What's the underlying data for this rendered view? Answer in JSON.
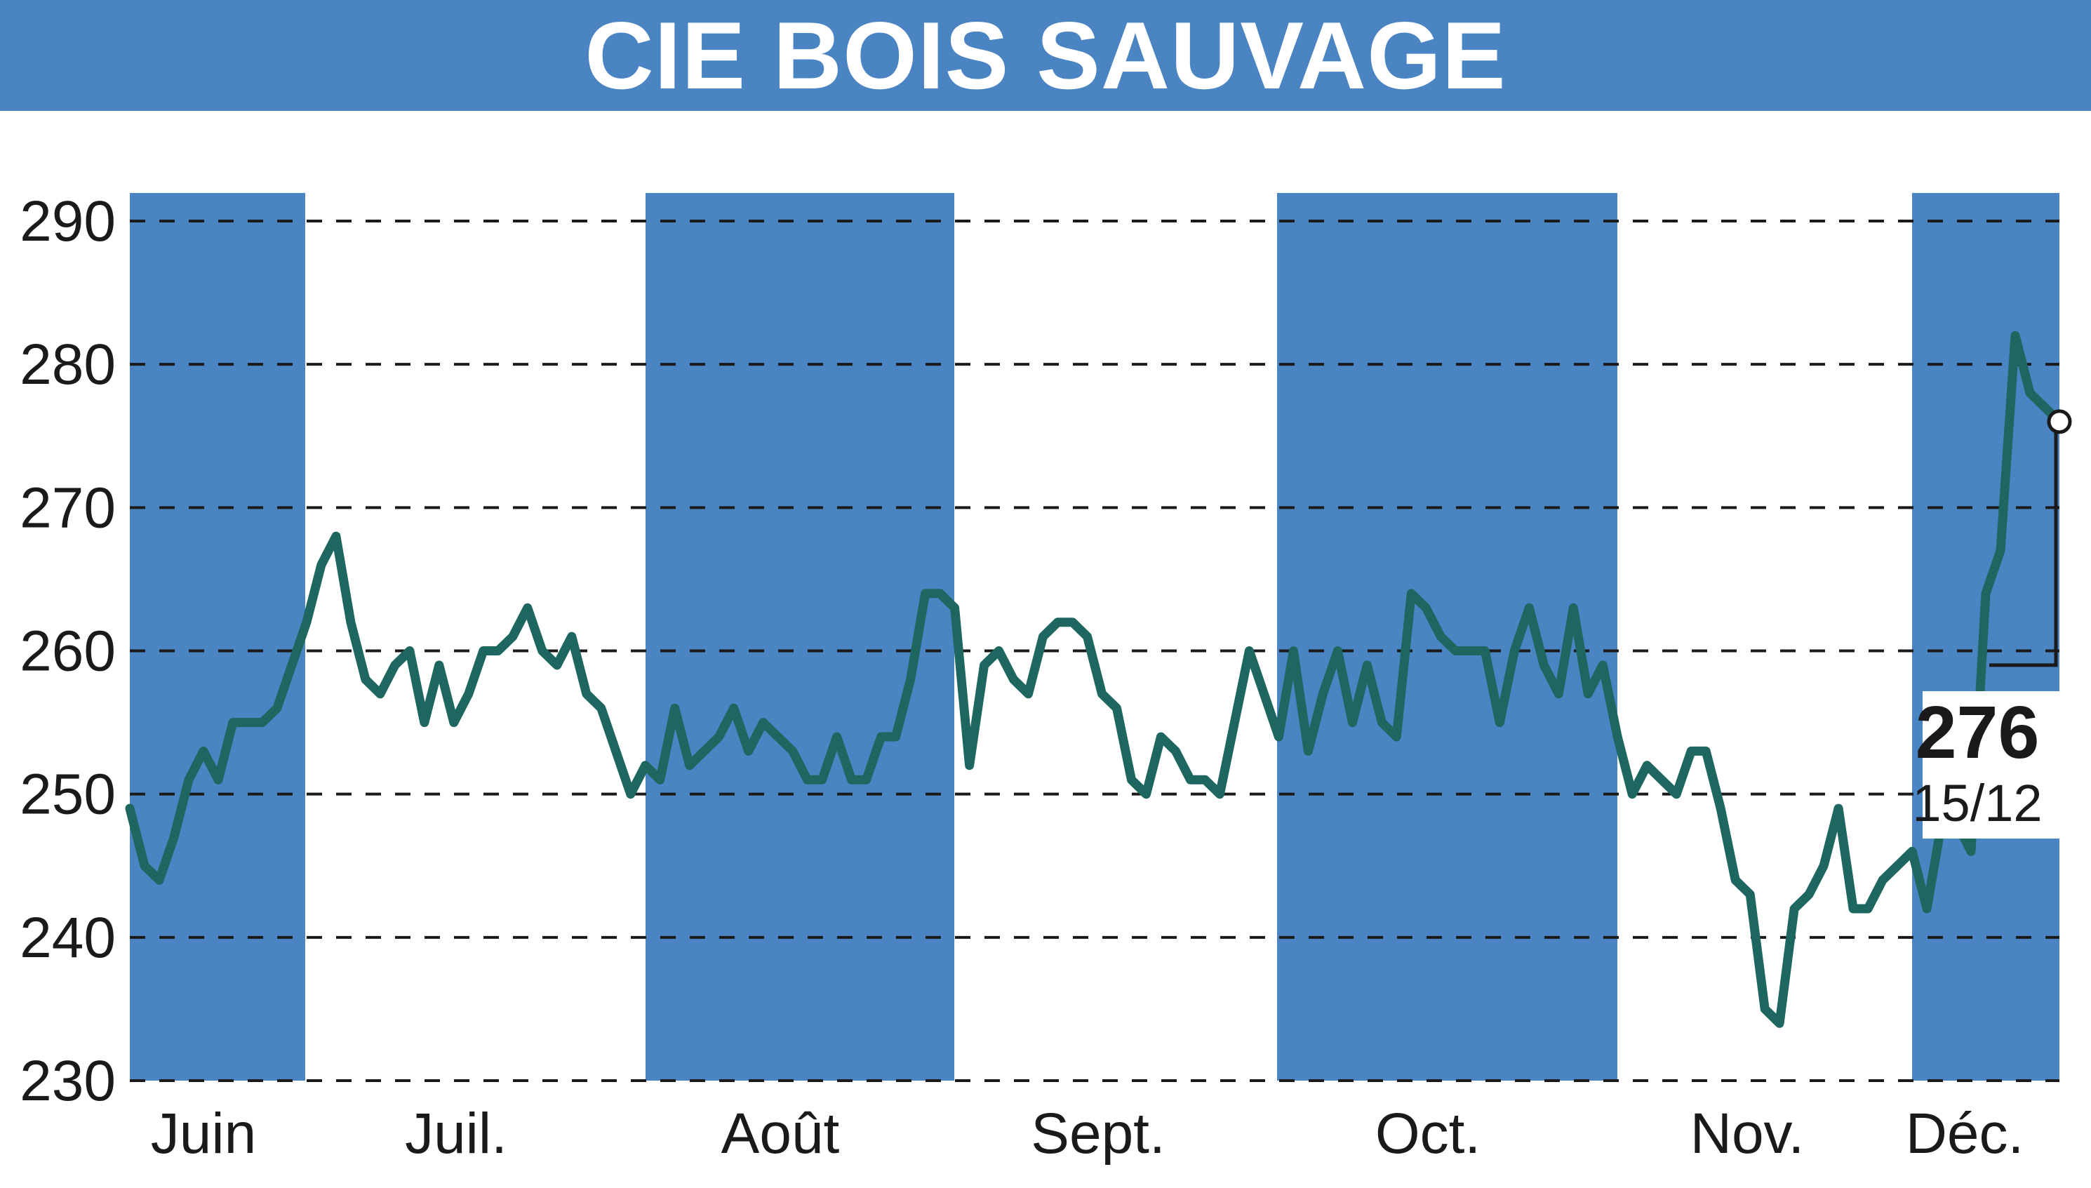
{
  "title": "CIE BOIS SAUVAGE",
  "colors": {
    "header": "#4a84c2",
    "band": "#4a84c2",
    "line": "#1e6660",
    "grid": "#1a1a1a",
    "text": "#1a1a1a"
  },
  "chart_data": {
    "type": "line",
    "title": "CIE BOIS SAUVAGE",
    "ylim": [
      230,
      290
    ],
    "yticks": [
      290,
      280,
      270,
      260,
      250,
      240,
      230
    ],
    "grid": true,
    "months": [
      "Juin",
      "Juil.",
      "Août",
      "Sept.",
      "Oct.",
      "Nov.",
      "Déc."
    ],
    "shaded_months": [
      "Juin",
      "Août",
      "Oct.",
      "Déc."
    ],
    "values": [
      249,
      245,
      244,
      247,
      251,
      253,
      251,
      255,
      255,
      255,
      256,
      259,
      262,
      266,
      268,
      262,
      258,
      257,
      259,
      260,
      255,
      259,
      255,
      257,
      260,
      260,
      261,
      263,
      260,
      259,
      261,
      257,
      256,
      253,
      250,
      252,
      251,
      256,
      252,
      253,
      254,
      256,
      253,
      255,
      254,
      253,
      251,
      251,
      254,
      251,
      251,
      254,
      254,
      258,
      264,
      264,
      263,
      252,
      259,
      260,
      258,
      257,
      261,
      262,
      262,
      261,
      257,
      256,
      251,
      250,
      254,
      253,
      251,
      251,
      250,
      255,
      260,
      257,
      254,
      260,
      253,
      257,
      260,
      255,
      259,
      255,
      254,
      264,
      263,
      261,
      260,
      260,
      260,
      255,
      260,
      263,
      259,
      257,
      263,
      257,
      259,
      254,
      250,
      252,
      251,
      250,
      253,
      253,
      249,
      244,
      243,
      235,
      234,
      242,
      243,
      245,
      249,
      242,
      242,
      244,
      245,
      246,
      242,
      248,
      248,
      246,
      264,
      267,
      282,
      278,
      277,
      276
    ],
    "last_value": "276",
    "last_date": "15/12"
  }
}
